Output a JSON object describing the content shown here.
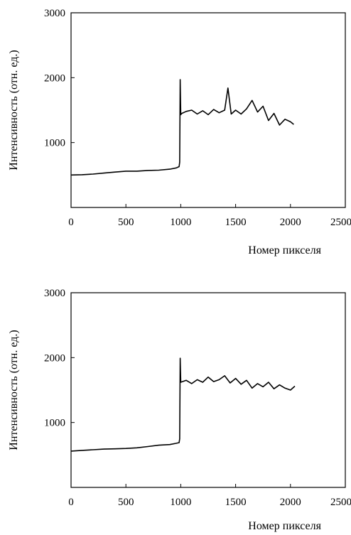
{
  "chart_data": [
    {
      "type": "line",
      "title": "",
      "xlabel": "Номер пикселя",
      "ylabel": "Интенсивность (отн. ед.)",
      "xlim": [
        0,
        2500
      ],
      "ylim": [
        0,
        3000
      ],
      "xticks": [
        "0",
        "500",
        "1000",
        "1500",
        "2000",
        "2500"
      ],
      "yticks": [
        "1000",
        "2000",
        "3000"
      ],
      "grid": false,
      "legend": "none",
      "series": [
        {
          "x": [
            0,
            100,
            200,
            300,
            400,
            500,
            600,
            700,
            800,
            900,
            960,
            985,
            990,
            995,
            1000,
            1010,
            1050,
            1100,
            1150,
            1200,
            1250,
            1300,
            1350,
            1400,
            1430,
            1460,
            1500,
            1550,
            1600,
            1650,
            1700,
            1750,
            1800,
            1850,
            1900,
            1950,
            2000,
            2030
          ],
          "y": [
            500,
            505,
            515,
            530,
            545,
            560,
            560,
            570,
            575,
            590,
            610,
            630,
            700,
            1970,
            1430,
            1450,
            1480,
            1500,
            1440,
            1490,
            1430,
            1510,
            1460,
            1500,
            1840,
            1440,
            1500,
            1440,
            1520,
            1650,
            1470,
            1560,
            1340,
            1450,
            1270,
            1360,
            1320,
            1280
          ]
        }
      ]
    },
    {
      "type": "line",
      "title": "",
      "xlabel": "Номер пикселя",
      "ylabel": "Интенсивность (отн. ед.)",
      "xlim": [
        0,
        2500
      ],
      "ylim": [
        0,
        3000
      ],
      "xticks": [
        "0",
        "500",
        "1000",
        "1500",
        "2000",
        "2500"
      ],
      "yticks": [
        "1000",
        "2000",
        "3000"
      ],
      "grid": false,
      "legend": "none",
      "series": [
        {
          "x": [
            0,
            100,
            200,
            300,
            400,
            500,
            600,
            700,
            800,
            900,
            960,
            985,
            990,
            995,
            1000,
            1050,
            1100,
            1150,
            1200,
            1250,
            1300,
            1350,
            1400,
            1450,
            1500,
            1550,
            1600,
            1650,
            1700,
            1750,
            1800,
            1850,
            1900,
            1950,
            2000,
            2040
          ],
          "y": [
            560,
            570,
            580,
            590,
            595,
            600,
            610,
            630,
            650,
            660,
            680,
            690,
            750,
            1990,
            1620,
            1650,
            1600,
            1660,
            1620,
            1700,
            1630,
            1660,
            1720,
            1610,
            1680,
            1590,
            1650,
            1530,
            1600,
            1550,
            1620,
            1520,
            1580,
            1530,
            1500,
            1560
          ]
        }
      ]
    }
  ]
}
